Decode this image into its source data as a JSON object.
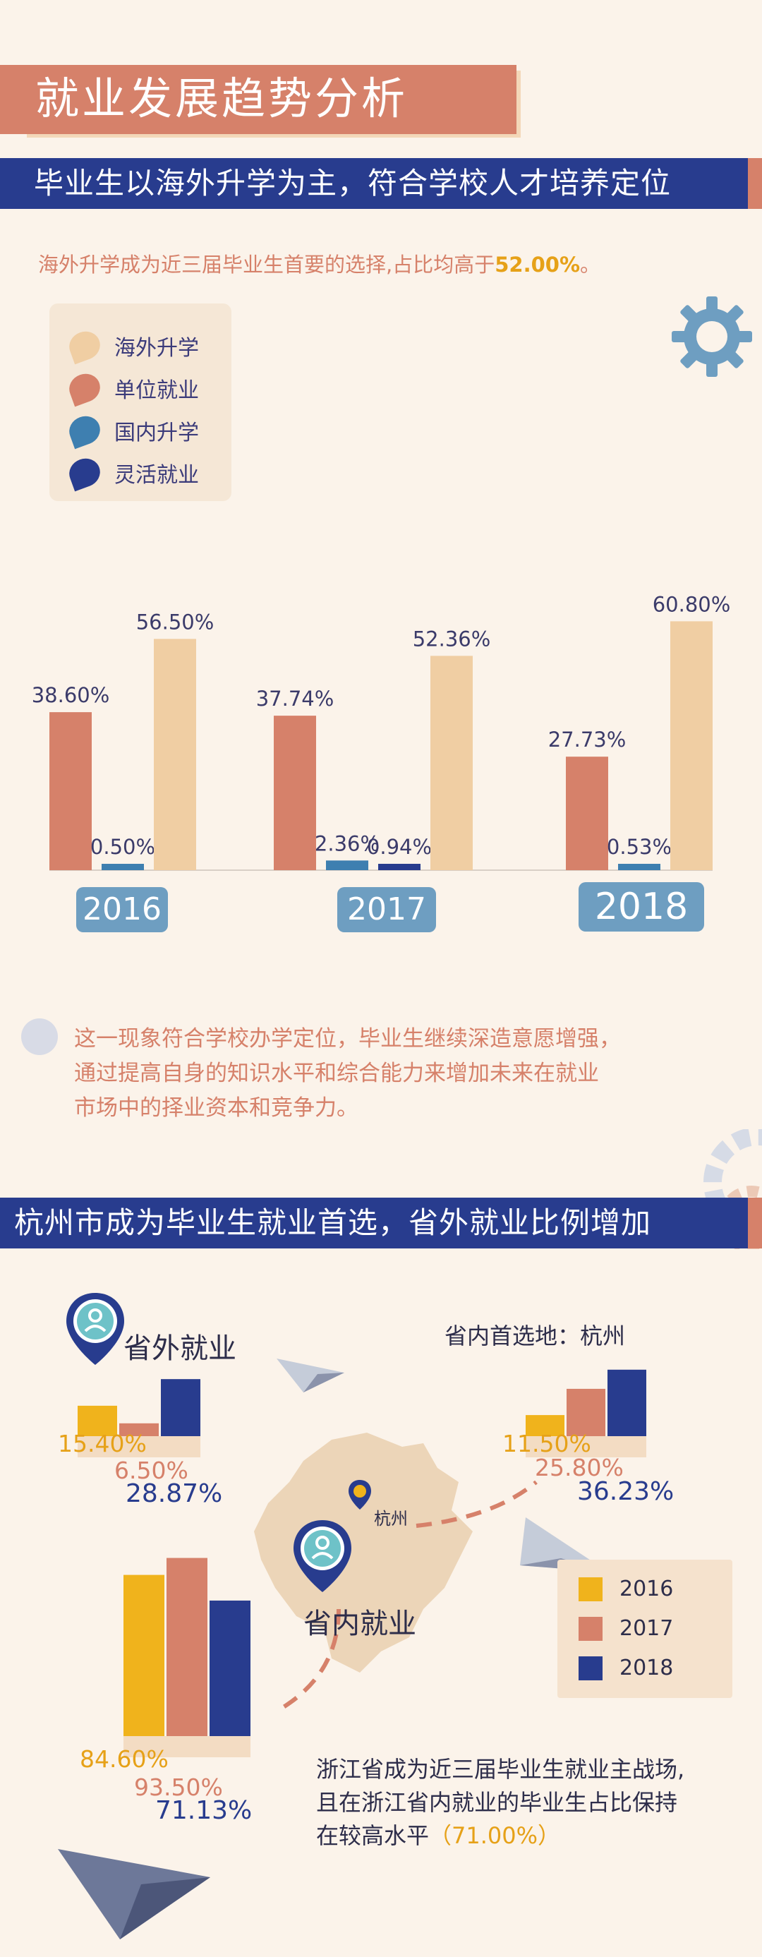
{
  "title": "就业发展趋势分析",
  "section1": {
    "heading": "毕业生以海外升学为主，符合学校人才培养定位",
    "intro_prefix": "海外升学成为近三届毕业生首要的选择,占比均高于",
    "intro_highlight": "52.00%",
    "intro_suffix": "。",
    "note_lines": [
      "这一现象符合学校办学定位，毕业生继续深造意愿增强，",
      "通过提高自身的知识水平和综合能力来增加未来在就业",
      "市场中的择业资本和竞争力。"
    ]
  },
  "section2": {
    "heading": "杭州市成为毕业生就业首选，省外就业比例增加",
    "outside_label": "省外就业",
    "hangzhou_label": "省内首选地：杭州",
    "inside_label": "省内就业",
    "map_city": "杭州",
    "conclude_lines": [
      "浙江省成为近三届毕业生就业主战场,",
      "且在浙江省内就业的毕业生占比保持"
    ],
    "conclude_prefix": "在较高水平",
    "conclude_highlight": "（71.00%）"
  },
  "colors": {
    "overseas": "#f0cea3",
    "employment": "#d6816a",
    "domestic": "#3e7fb0",
    "flexible": "#283c8e",
    "y2016": "#f0b31c",
    "y2017": "#d6816a",
    "y2018": "#283c8e"
  },
  "chart_data": [
    {
      "type": "bar",
      "categories": [
        "2016",
        "2017",
        "2018"
      ],
      "series": [
        {
          "name": "单位就业",
          "values": [
            38.6,
            37.74,
            27.73
          ],
          "labels": [
            "38.60%",
            "37.74%",
            "27.73%"
          ]
        },
        {
          "name": "国内升学",
          "values": [
            0.5,
            2.36,
            0.53
          ],
          "labels": [
            "0.50%",
            "2.36%",
            "0.53%"
          ]
        },
        {
          "name": "灵活就业",
          "values": [
            null,
            0.94,
            null
          ],
          "labels": [
            "",
            "0.94%",
            ""
          ]
        },
        {
          "name": "海外升学",
          "values": [
            56.5,
            52.36,
            60.8
          ],
          "labels": [
            "56.50%",
            "52.36%",
            "60.80%"
          ]
        }
      ],
      "legend": [
        "海外升学",
        "单位就业",
        "国内升学",
        "灵活就业"
      ],
      "ylim": [
        0,
        65
      ]
    },
    {
      "type": "bar",
      "title": "省外就业",
      "categories": [
        "2016",
        "2017",
        "2018"
      ],
      "values": [
        15.4,
        6.5,
        28.87
      ],
      "labels": [
        "15.40%",
        "6.50%",
        "28.87%"
      ]
    },
    {
      "type": "bar",
      "title": "省内首选地：杭州",
      "categories": [
        "2016",
        "2017",
        "2018"
      ],
      "values": [
        11.5,
        25.8,
        36.23
      ],
      "labels": [
        "11.50%",
        "25.80%",
        "36.23%"
      ]
    },
    {
      "type": "bar",
      "title": "省内就业",
      "categories": [
        "2016",
        "2017",
        "2018"
      ],
      "values": [
        84.6,
        93.5,
        71.13
      ],
      "labels": [
        "84.60%",
        "93.50%",
        "71.13%"
      ]
    }
  ]
}
